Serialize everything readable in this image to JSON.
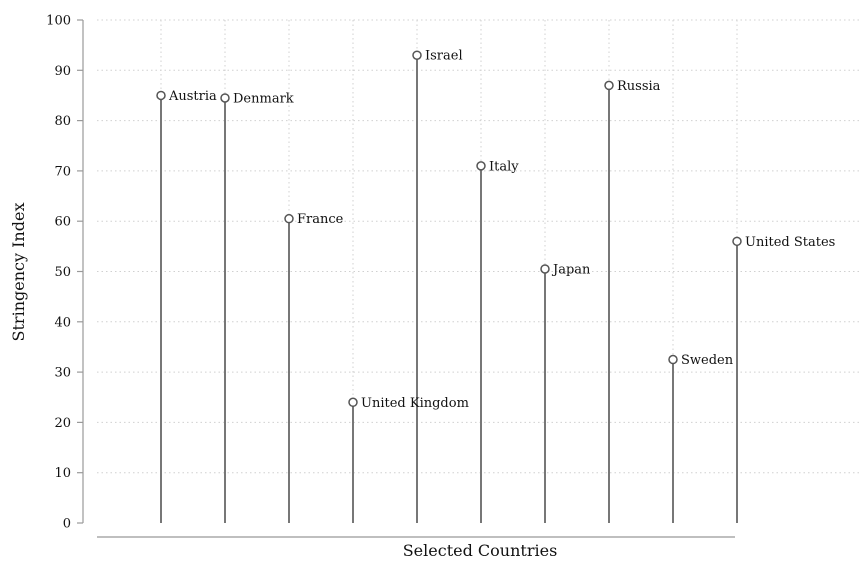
{
  "chart_data": {
    "type": "lollipop",
    "xlabel": "Selected Countries",
    "ylabel": "Stringency Index",
    "ylim": [
      0,
      100
    ],
    "yticks": [
      0,
      10,
      20,
      30,
      40,
      50,
      60,
      70,
      80,
      90,
      100
    ],
    "grid": true,
    "categories": [
      "Austria",
      "Denmark",
      "France",
      "United Kingdom",
      "Israel",
      "Italy",
      "Japan",
      "Russia",
      "Sweden",
      "United States"
    ],
    "values": [
      85,
      84.5,
      60.5,
      24,
      93,
      71,
      50.5,
      87,
      32.5,
      56
    ],
    "colors": {
      "stem": "#777777",
      "marker": "#555555",
      "grid": "#d0d0d0",
      "axis": "#999999"
    }
  }
}
